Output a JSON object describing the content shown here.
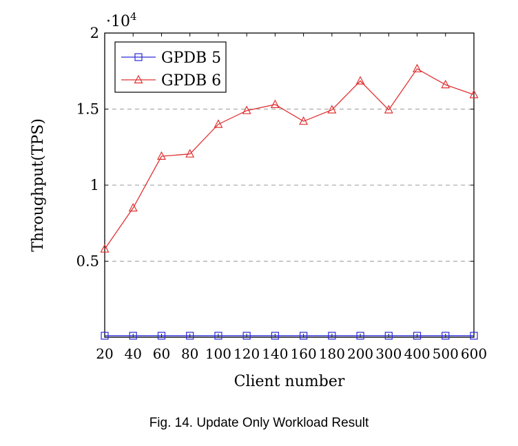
{
  "chart_data": {
    "type": "line",
    "categories": [
      "20",
      "40",
      "60",
      "80",
      "100",
      "120",
      "140",
      "160",
      "180",
      "200",
      "300",
      "400",
      "500",
      "600"
    ],
    "series": [
      {
        "name": "GPDB 5",
        "color": "#2b2bd6",
        "marker": "square",
        "values": [
          100,
          100,
          100,
          100,
          100,
          100,
          100,
          100,
          100,
          100,
          100,
          100,
          100,
          100
        ]
      },
      {
        "name": "GPDB 6",
        "color": "#e03030",
        "marker": "triangle",
        "values": [
          5800,
          8500,
          11900,
          12050,
          14000,
          14900,
          15300,
          14200,
          14950,
          16850,
          14950,
          17650,
          16600,
          15950
        ]
      }
    ],
    "xlabel": "Client number",
    "ylabel": "Throughput(TPS)",
    "ylim": [
      0,
      20000
    ],
    "yticks": [
      0.5,
      1,
      1.5,
      2
    ],
    "yscale_base": "·10",
    "yscale_exp": "4",
    "grid": "horizontal-dashed",
    "legend_position": "top-left"
  },
  "caption": "Fig. 14.  Update Only Workload Result"
}
